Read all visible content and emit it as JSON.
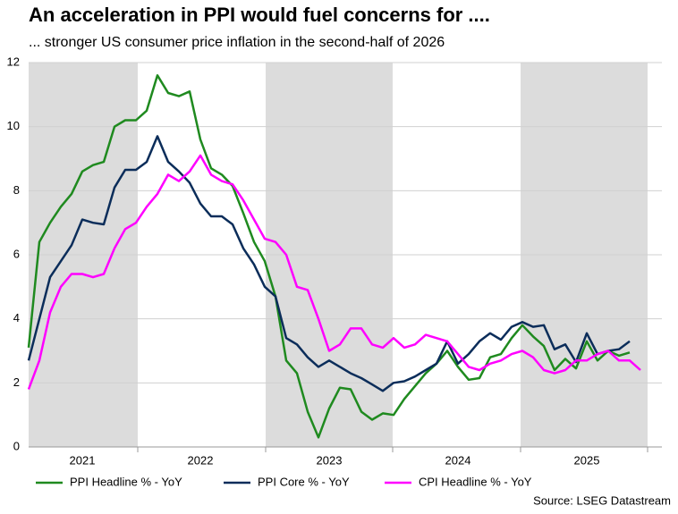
{
  "chart_data": {
    "type": "line",
    "title": "An acceleration in PPI would fuel concerns for ....",
    "subtitle": "... stronger US consumer price inflation in the second-half of 2026",
    "source": "Source: LSEG Datastream",
    "categories": [
      null,
      null,
      null,
      null,
      null,
      "2021",
      null,
      null,
      null,
      null,
      null,
      null,
      null,
      null,
      null,
      null,
      "2022",
      null,
      null,
      null,
      null,
      null,
      null,
      null,
      null,
      null,
      null,
      null,
      "2023",
      null,
      null,
      null,
      null,
      null,
      null,
      null,
      null,
      null,
      null,
      null,
      "2024",
      null,
      null,
      null,
      null,
      null,
      null,
      null,
      null,
      null,
      null,
      null,
      "2025",
      null,
      null,
      null,
      null,
      null
    ],
    "series": [
      {
        "name": "PPI Headline % - YoY",
        "color": "#1f8a1f",
        "values": [
          3.1,
          6.4,
          7.0,
          7.5,
          7.9,
          8.6,
          8.8,
          8.9,
          10.0,
          10.2,
          10.2,
          10.5,
          11.6,
          11.05,
          10.95,
          11.1,
          9.6,
          8.7,
          8.5,
          8.15,
          7.3,
          6.4,
          5.8,
          4.7,
          2.7,
          2.3,
          1.1,
          0.3,
          1.2,
          1.85,
          1.8,
          1.1,
          0.85,
          1.05,
          1.0,
          1.5,
          1.9,
          2.3,
          2.6,
          3.0,
          2.5,
          2.1,
          2.15,
          2.8,
          2.9,
          3.4,
          3.8,
          3.45,
          3.15,
          2.4,
          2.75,
          2.45,
          3.3,
          2.7,
          3.0,
          2.85,
          2.95,
          null
        ]
      },
      {
        "name": "PPI Core % - YoY",
        "color": "#0b2d5a",
        "values": [
          2.7,
          4.0,
          5.3,
          5.8,
          6.3,
          7.1,
          7.0,
          6.95,
          8.1,
          8.65,
          8.65,
          8.9,
          9.7,
          8.9,
          8.6,
          8.25,
          7.6,
          7.2,
          7.2,
          6.95,
          6.2,
          5.7,
          5.0,
          4.7,
          3.4,
          3.2,
          2.8,
          2.5,
          2.7,
          2.5,
          2.3,
          2.15,
          1.95,
          1.75,
          2.0,
          2.05,
          2.2,
          2.4,
          2.6,
          3.3,
          2.6,
          2.9,
          3.3,
          3.55,
          3.35,
          3.75,
          3.9,
          3.75,
          3.8,
          3.05,
          3.2,
          2.65,
          3.55,
          2.9,
          3.0,
          3.05,
          3.3,
          null
        ]
      },
      {
        "name": "CPI Headline % - YoY",
        "color": "#ff00ff",
        "values": [
          1.8,
          2.7,
          4.2,
          5.0,
          5.4,
          5.4,
          5.3,
          5.4,
          6.2,
          6.8,
          7.0,
          7.5,
          7.9,
          8.5,
          8.3,
          8.6,
          9.1,
          8.5,
          8.3,
          8.2,
          7.7,
          7.1,
          6.5,
          6.4,
          6.0,
          5.0,
          4.9,
          4.0,
          3.0,
          3.2,
          3.7,
          3.7,
          3.2,
          3.1,
          3.4,
          3.1,
          3.2,
          3.5,
          3.4,
          3.3,
          2.9,
          2.5,
          2.4,
          2.6,
          2.7,
          2.9,
          3.0,
          2.8,
          2.4,
          2.3,
          2.4,
          2.7,
          2.7,
          2.9,
          3.0,
          2.7,
          2.7,
          2.4
        ]
      }
    ],
    "ylim": [
      0,
      12
    ],
    "yticks": [
      0,
      2,
      4,
      6,
      8,
      10,
      12
    ],
    "grid": true
  }
}
